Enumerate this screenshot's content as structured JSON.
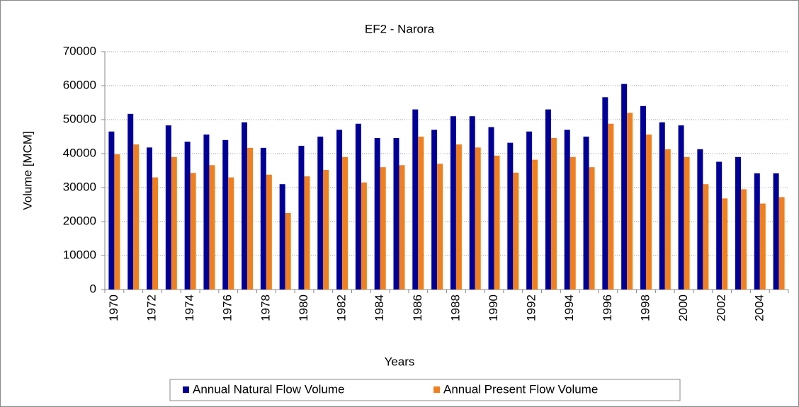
{
  "chart_data": {
    "type": "bar",
    "title": "EF2 - Narora",
    "x_label": "Years",
    "y_label": "Volume [MCM]",
    "categories": [
      "1970",
      null,
      "1972",
      null,
      "1974",
      null,
      "1976",
      null,
      "1978",
      null,
      "1980",
      null,
      "1982",
      null,
      "1984",
      null,
      "1986",
      null,
      "1988",
      null,
      "1990",
      null,
      "1992",
      null,
      "1994",
      null,
      "1996",
      null,
      "1998",
      null,
      "2000",
      null,
      "2002",
      null,
      "2004",
      null
    ],
    "series": [
      {
        "name": "Annual Natural Flow Volume",
        "color": "#000099",
        "values": [
          46500,
          51700,
          41800,
          48300,
          43500,
          45600,
          44000,
          49200,
          41700,
          31000,
          42300,
          45000,
          47000,
          48800,
          44600,
          44600,
          53000,
          47000,
          51000,
          51000,
          47800,
          43200,
          46500,
          53000,
          47000,
          45000,
          56600,
          60500,
          54000,
          49200,
          48300,
          41300,
          37600,
          39000,
          34200,
          34200
        ]
      },
      {
        "name": "Annual Present Flow Volume",
        "color": "#f07f1e",
        "values": [
          39800,
          42700,
          33000,
          39000,
          34300,
          36600,
          33000,
          41700,
          33800,
          22500,
          33300,
          35200,
          39000,
          31500,
          36000,
          36600,
          45000,
          37000,
          42700,
          41800,
          39400,
          34400,
          38200,
          44600,
          39000,
          36000,
          48800,
          52000,
          45600,
          41300,
          39000,
          31000,
          26800,
          29500,
          25300,
          27200
        ]
      }
    ],
    "ylim": [
      0,
      70000
    ],
    "yticks": [
      0,
      10000,
      20000,
      30000,
      40000,
      50000,
      60000,
      70000
    ],
    "grid": true,
    "legend": "bottom"
  }
}
